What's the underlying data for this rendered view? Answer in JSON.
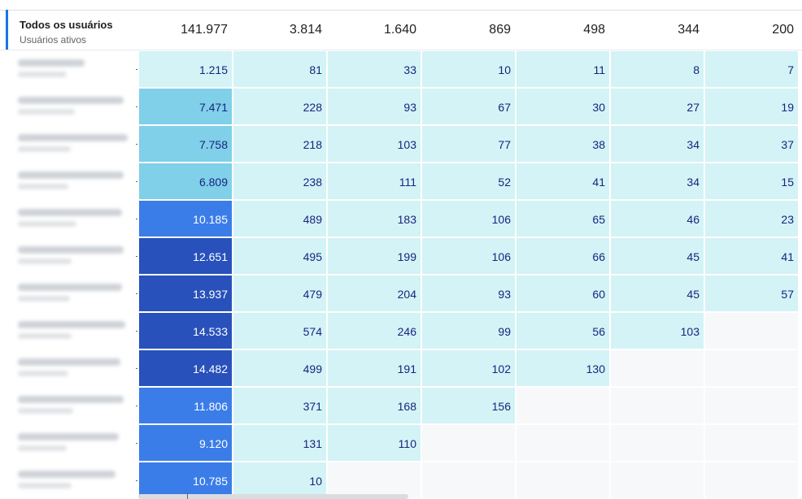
{
  "header": {
    "title": "Todos os usuários",
    "subtitle": "Usuários ativos",
    "totals": [
      "141.977",
      "3.814",
      "1.640",
      "869",
      "498",
      "344",
      "200"
    ]
  },
  "colors": {
    "accent": "#1a73e8",
    "cell_light": "#d3f3f6",
    "cell_mid": "#7fd0e8",
    "cell_blue": "#3b7de8",
    "cell_dark": "#2851bb",
    "cell_empty": "#f7f8f9"
  },
  "rows": [
    {
      "cells": [
        "1.215",
        "81",
        "33",
        "10",
        "11",
        "8",
        "7"
      ],
      "first_shade": "light"
    },
    {
      "cells": [
        "7.471",
        "228",
        "93",
        "67",
        "30",
        "27",
        "19"
      ],
      "first_shade": "mid"
    },
    {
      "cells": [
        "7.758",
        "218",
        "103",
        "77",
        "38",
        "34",
        "37"
      ],
      "first_shade": "mid"
    },
    {
      "cells": [
        "6.809",
        "238",
        "111",
        "52",
        "41",
        "34",
        "15"
      ],
      "first_shade": "mid"
    },
    {
      "cells": [
        "10.185",
        "489",
        "183",
        "106",
        "65",
        "46",
        "23"
      ],
      "first_shade": "blue"
    },
    {
      "cells": [
        "12.651",
        "495",
        "199",
        "106",
        "66",
        "45",
        "41"
      ],
      "first_shade": "dark"
    },
    {
      "cells": [
        "13.937",
        "479",
        "204",
        "93",
        "60",
        "45",
        "57"
      ],
      "first_shade": "dark"
    },
    {
      "cells": [
        "14.533",
        "574",
        "246",
        "99",
        "56",
        "103"
      ],
      "first_shade": "dark"
    },
    {
      "cells": [
        "14.482",
        "499",
        "191",
        "102",
        "130"
      ],
      "first_shade": "dark"
    },
    {
      "cells": [
        "11.806",
        "371",
        "168",
        "156"
      ],
      "first_shade": "blue"
    },
    {
      "cells": [
        "9.120",
        "131",
        "110"
      ],
      "first_shade": "blue"
    },
    {
      "cells": [
        "10.785",
        "10"
      ],
      "first_shade": "blue"
    }
  ]
}
